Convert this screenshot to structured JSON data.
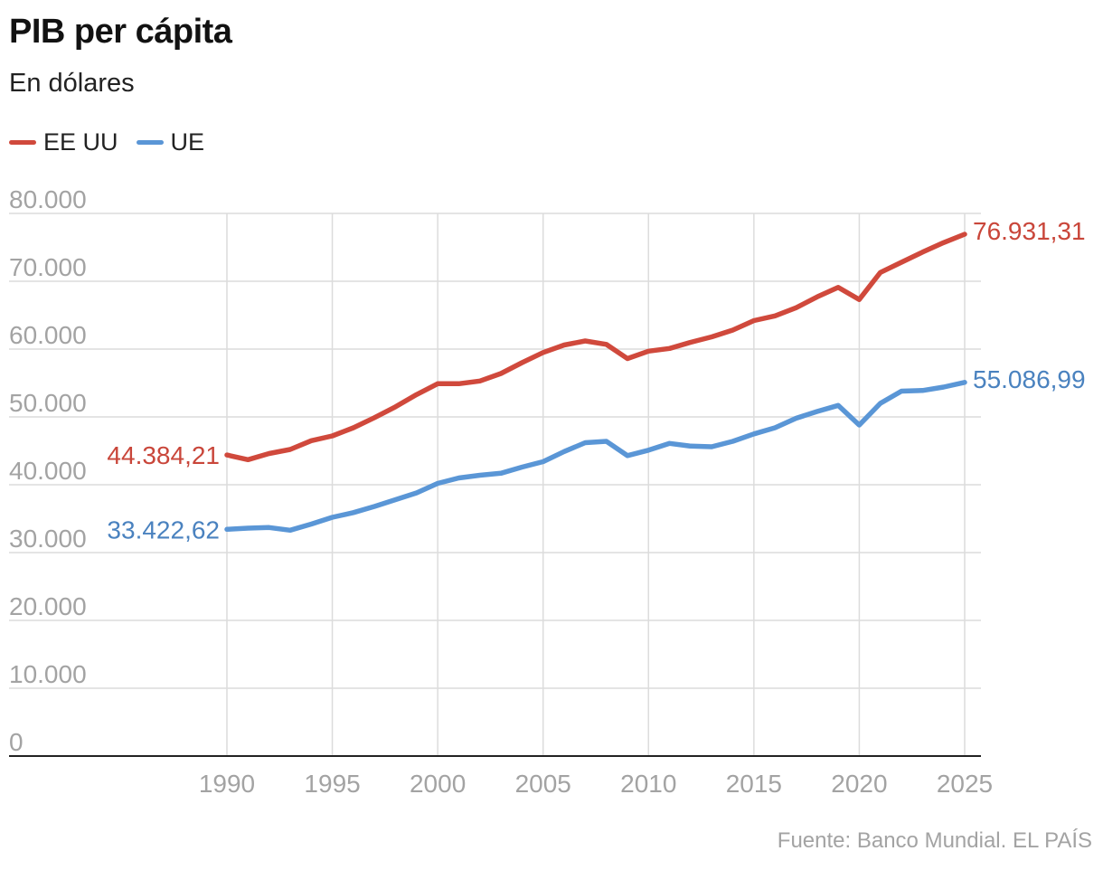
{
  "header": {
    "title": "PIB per cápita",
    "subtitle": "En dólares"
  },
  "legend": {
    "items": [
      {
        "label": "EE UU",
        "color": "#d0493c"
      },
      {
        "label": "UE",
        "color": "#5a96d6"
      }
    ]
  },
  "footer": {
    "source": "Fuente: Banco Mundial. EL PAÍS"
  },
  "chart_data": {
    "type": "line",
    "title": "PIB per cápita",
    "subtitle": "En dólares",
    "xlabel": "",
    "ylabel": "",
    "xlim": [
      1990,
      2025
    ],
    "ylim": [
      0,
      80000
    ],
    "grid": true,
    "legend_position": "top-left",
    "x_ticks": [
      1990,
      1995,
      2000,
      2005,
      2010,
      2015,
      2020,
      2025
    ],
    "x_tick_labels": [
      "1990",
      "1995",
      "2000",
      "2005",
      "2010",
      "2015",
      "2020",
      "2025"
    ],
    "y_ticks": [
      0,
      10000,
      20000,
      30000,
      40000,
      50000,
      60000,
      70000,
      80000
    ],
    "y_tick_labels": [
      "0",
      "10.000",
      "20.000",
      "30.000",
      "40.000",
      "50.000",
      "60.000",
      "70.000",
      "80.000"
    ],
    "x": [
      1990,
      1991,
      1992,
      1993,
      1994,
      1995,
      1996,
      1997,
      1998,
      1999,
      2000,
      2001,
      2002,
      2003,
      2004,
      2005,
      2006,
      2007,
      2008,
      2009,
      2010,
      2011,
      2012,
      2013,
      2014,
      2015,
      2016,
      2017,
      2018,
      2019,
      2020,
      2021,
      2022,
      2023,
      2024,
      2025
    ],
    "series": [
      {
        "name": "EE UU",
        "color": "#d0493c",
        "values": [
          44384.21,
          43700,
          44600,
          45200,
          46500,
          47200,
          48400,
          49900,
          51500,
          53300,
          54900,
          54900,
          55300,
          56400,
          58000,
          59500,
          60600,
          61200,
          60700,
          58600,
          59700,
          60100,
          61000,
          61800,
          62800,
          64200,
          64900,
          66100,
          67700,
          69100,
          67300,
          71300,
          72800,
          74300,
          75700,
          76931.31
        ],
        "start_label": "44.384,21",
        "end_label": "76.931,31"
      },
      {
        "name": "UE",
        "color": "#5a96d6",
        "values": [
          33422.62,
          33600,
          33700,
          33300,
          34200,
          35200,
          35900,
          36800,
          37800,
          38800,
          40200,
          41000,
          41400,
          41700,
          42600,
          43400,
          44900,
          46200,
          46400,
          44300,
          45100,
          46100,
          45700,
          45600,
          46400,
          47500,
          48400,
          49800,
          50800,
          51700,
          48800,
          52000,
          53800,
          53900,
          54400,
          55086.99
        ],
        "start_label": "33.422,62",
        "end_label": "55.086,99"
      }
    ]
  }
}
